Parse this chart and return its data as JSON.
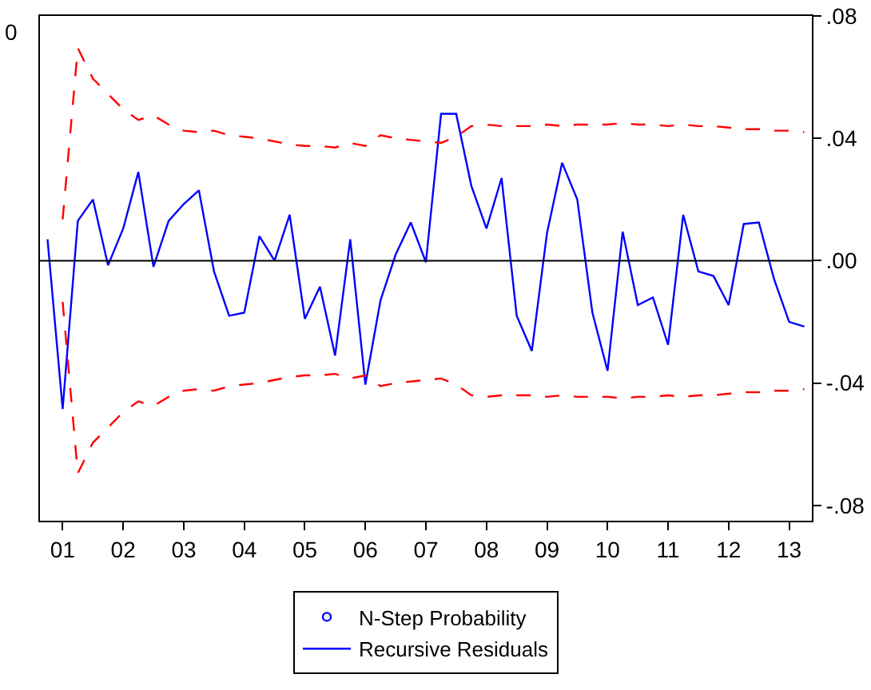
{
  "chart_data": {
    "type": "line",
    "categories": [
      null,
      "01",
      null,
      null,
      null,
      "02",
      null,
      null,
      null,
      "03",
      null,
      null,
      null,
      "04",
      null,
      null,
      null,
      "05",
      null,
      null,
      null,
      "06",
      null,
      null,
      null,
      "07",
      null,
      null,
      null,
      "08",
      null,
      null,
      null,
      "09",
      null,
      null,
      null,
      "10",
      null,
      null,
      null,
      "11",
      null,
      null,
      null,
      "12",
      null,
      null,
      null,
      "13",
      null
    ],
    "annotations": [
      "0"
    ],
    "series": [
      {
        "name": "N-Step Probability",
        "type": "scatter",
        "marker": "circle",
        "color": "#0000ff",
        "values": [
          null,
          null,
          null,
          null,
          null,
          null,
          null,
          null,
          null,
          null,
          null,
          null,
          null,
          null,
          null,
          null,
          null,
          null,
          null,
          null,
          null,
          null,
          null,
          null,
          null,
          null,
          null,
          null,
          null,
          null,
          null,
          null,
          null,
          null,
          null,
          null,
          null,
          null,
          null,
          null,
          null,
          null,
          null,
          null,
          null,
          null,
          null,
          null,
          null,
          null,
          null
        ]
      },
      {
        "name": "Recursive Residuals",
        "line_style": "solid",
        "color": "#0000ff",
        "values": [
          0.007,
          -0.0485,
          0.013,
          0.02,
          -0.0015,
          0.0105,
          0.029,
          -0.002,
          0.013,
          0.0185,
          0.023,
          -0.0035,
          -0.018,
          -0.017,
          0.008,
          0.0,
          0.015,
          -0.019,
          -0.0085,
          -0.031,
          0.007,
          -0.0405,
          -0.013,
          0.002,
          0.0125,
          -0.0005,
          0.048,
          0.048,
          0.0245,
          0.0105,
          0.027,
          -0.018,
          -0.0295,
          0.009,
          0.032,
          0.02,
          -0.017,
          -0.036,
          0.0095,
          -0.0145,
          -0.012,
          -0.0275,
          0.015,
          -0.0035,
          -0.005,
          -0.0145,
          0.012,
          0.0125,
          -0.006,
          -0.02,
          -0.0215
        ]
      },
      {
        "line_style": "dashed",
        "color": "#ff0000",
        "values": [
          null,
          0.0135,
          0.0695,
          0.0595,
          0.0545,
          0.0495,
          0.046,
          0.0475,
          0.0445,
          0.0425,
          0.042,
          0.0425,
          0.041,
          0.0405,
          0.04,
          0.039,
          0.038,
          0.0375,
          0.0375,
          0.037,
          0.0385,
          0.0375,
          0.041,
          0.04,
          0.0395,
          0.039,
          0.0385,
          0.0405,
          0.044,
          0.0445,
          0.044,
          0.044,
          0.044,
          0.0445,
          0.044,
          0.0445,
          0.0445,
          0.0445,
          0.045,
          0.0445,
          0.0445,
          0.044,
          0.0445,
          0.044,
          0.044,
          0.0435,
          0.043,
          0.043,
          0.0425,
          0.0425,
          0.042
        ]
      },
      {
        "line_style": "dashed",
        "color": "#ff0000",
        "values": [
          null,
          -0.0135,
          -0.0695,
          -0.0595,
          -0.0545,
          -0.0495,
          -0.046,
          -0.0475,
          -0.0445,
          -0.0425,
          -0.042,
          -0.0425,
          -0.041,
          -0.0405,
          -0.04,
          -0.039,
          -0.038,
          -0.0375,
          -0.0375,
          -0.037,
          -0.0385,
          -0.0375,
          -0.041,
          -0.04,
          -0.0395,
          -0.039,
          -0.0385,
          -0.0405,
          -0.044,
          -0.0445,
          -0.044,
          -0.044,
          -0.044,
          -0.0445,
          -0.044,
          -0.0445,
          -0.0445,
          -0.0445,
          -0.045,
          -0.0445,
          -0.0445,
          -0.044,
          -0.0445,
          -0.044,
          -0.044,
          -0.0435,
          -0.043,
          -0.043,
          -0.0425,
          -0.0425,
          -0.042
        ]
      }
    ],
    "ylim": [
      -0.085,
      0.08
    ],
    "yticks": [
      {
        "value": -0.08,
        "label": "-.08"
      },
      {
        "value": -0.04,
        "label": "-.04"
      },
      {
        "value": 0,
        "label": ".00"
      },
      {
        "value": 0.04,
        "label": ".04"
      },
      {
        "value": 0.08,
        "label": ".08"
      }
    ],
    "ref_lines": [
      {
        "axis": "y",
        "value": 0,
        "color": "#000000"
      }
    ],
    "grid": false,
    "legend": "bottom"
  }
}
